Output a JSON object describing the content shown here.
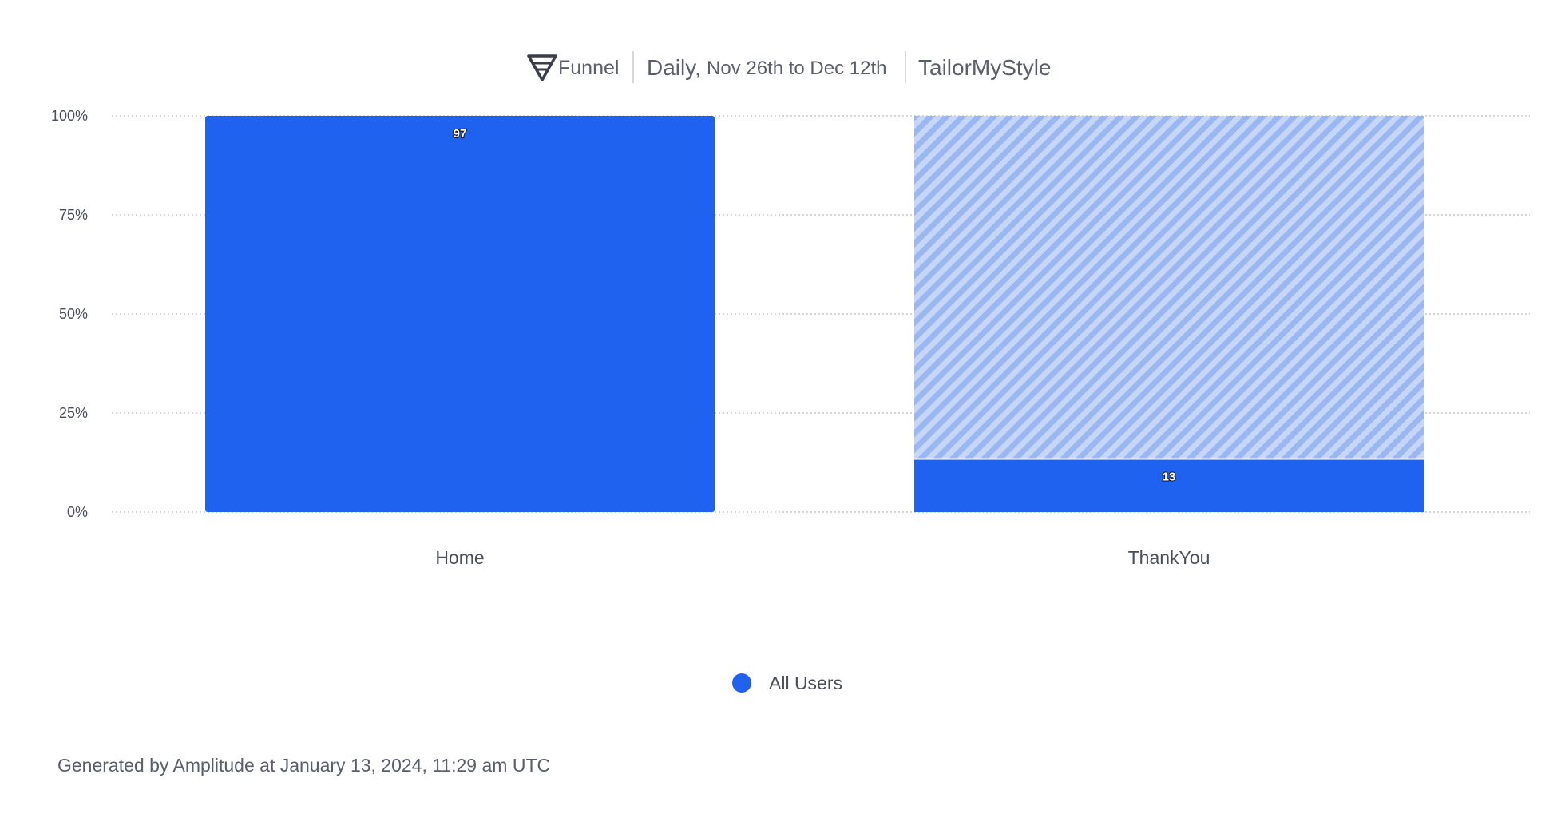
{
  "header": {
    "report_type": "Funnel",
    "interval": "Daily,",
    "date_range": "Nov 26th to Dec 12th",
    "project": "TailorMyStyle"
  },
  "chart_data": {
    "type": "bar",
    "categories": [
      "Home",
      "ThankYou"
    ],
    "series": [
      {
        "name": "All Users",
        "percent_values": [
          100,
          13.4
        ],
        "count_labels": [
          "97",
          "13"
        ]
      }
    ],
    "yticks": [
      "100%",
      "75%",
      "50%",
      "25%",
      "0%"
    ],
    "ylim": [
      0,
      100
    ],
    "grid": true,
    "legend": "bottom-center",
    "drop_off_style": "hatched"
  },
  "legend": {
    "items": [
      {
        "label": "All Users",
        "color": "#1f62f0"
      }
    ]
  },
  "footer": {
    "text": "Generated by Amplitude at January 13, 2024, 11:29 am UTC"
  },
  "colors": {
    "bar": "#1f62f0",
    "dropoff_bg": "#c6d6f7",
    "dropoff_stripe": "#9ab7f1",
    "grid": "#b8bcc4",
    "text": "#4a4e5a"
  }
}
